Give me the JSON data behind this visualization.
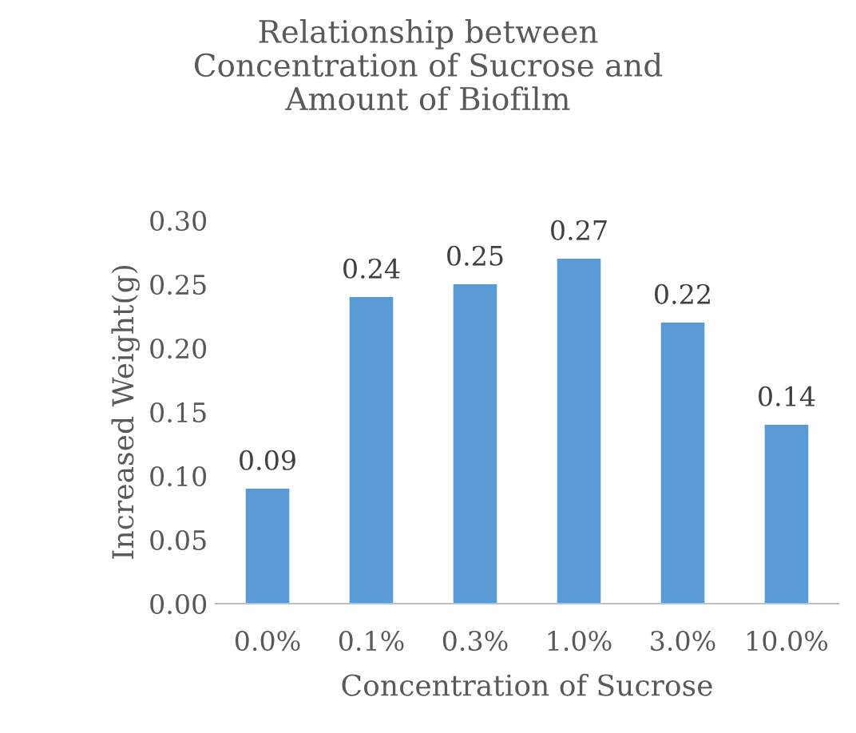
{
  "chart_data": {
    "type": "bar",
    "title": "Relationship between\nConcentration of Sucrose and\nAmount of Biofilm",
    "xlabel": "Concentration of Sucrose",
    "ylabel": "Increased Weight(g)",
    "categories": [
      "0.0%",
      "0.1%",
      "0.3%",
      "1.0%",
      "3.0%",
      "10.0%"
    ],
    "values": [
      0.09,
      0.24,
      0.25,
      0.27,
      0.22,
      0.14
    ],
    "color": "#5b9bd5",
    "ylim": [
      0,
      0.3
    ],
    "yticks": [
      {
        "value": 0,
        "label": "0.00"
      },
      {
        "value": 0.05,
        "label": "0.05"
      },
      {
        "value": 0.1,
        "label": "0.10"
      },
      {
        "value": 0.15,
        "label": "0.15"
      },
      {
        "value": 0.2,
        "label": "0.20"
      },
      {
        "value": 0.25,
        "label": "0.25"
      },
      {
        "value": 0.3,
        "label": "0.30"
      }
    ],
    "data_labels": true,
    "grid": false,
    "legend": false
  }
}
